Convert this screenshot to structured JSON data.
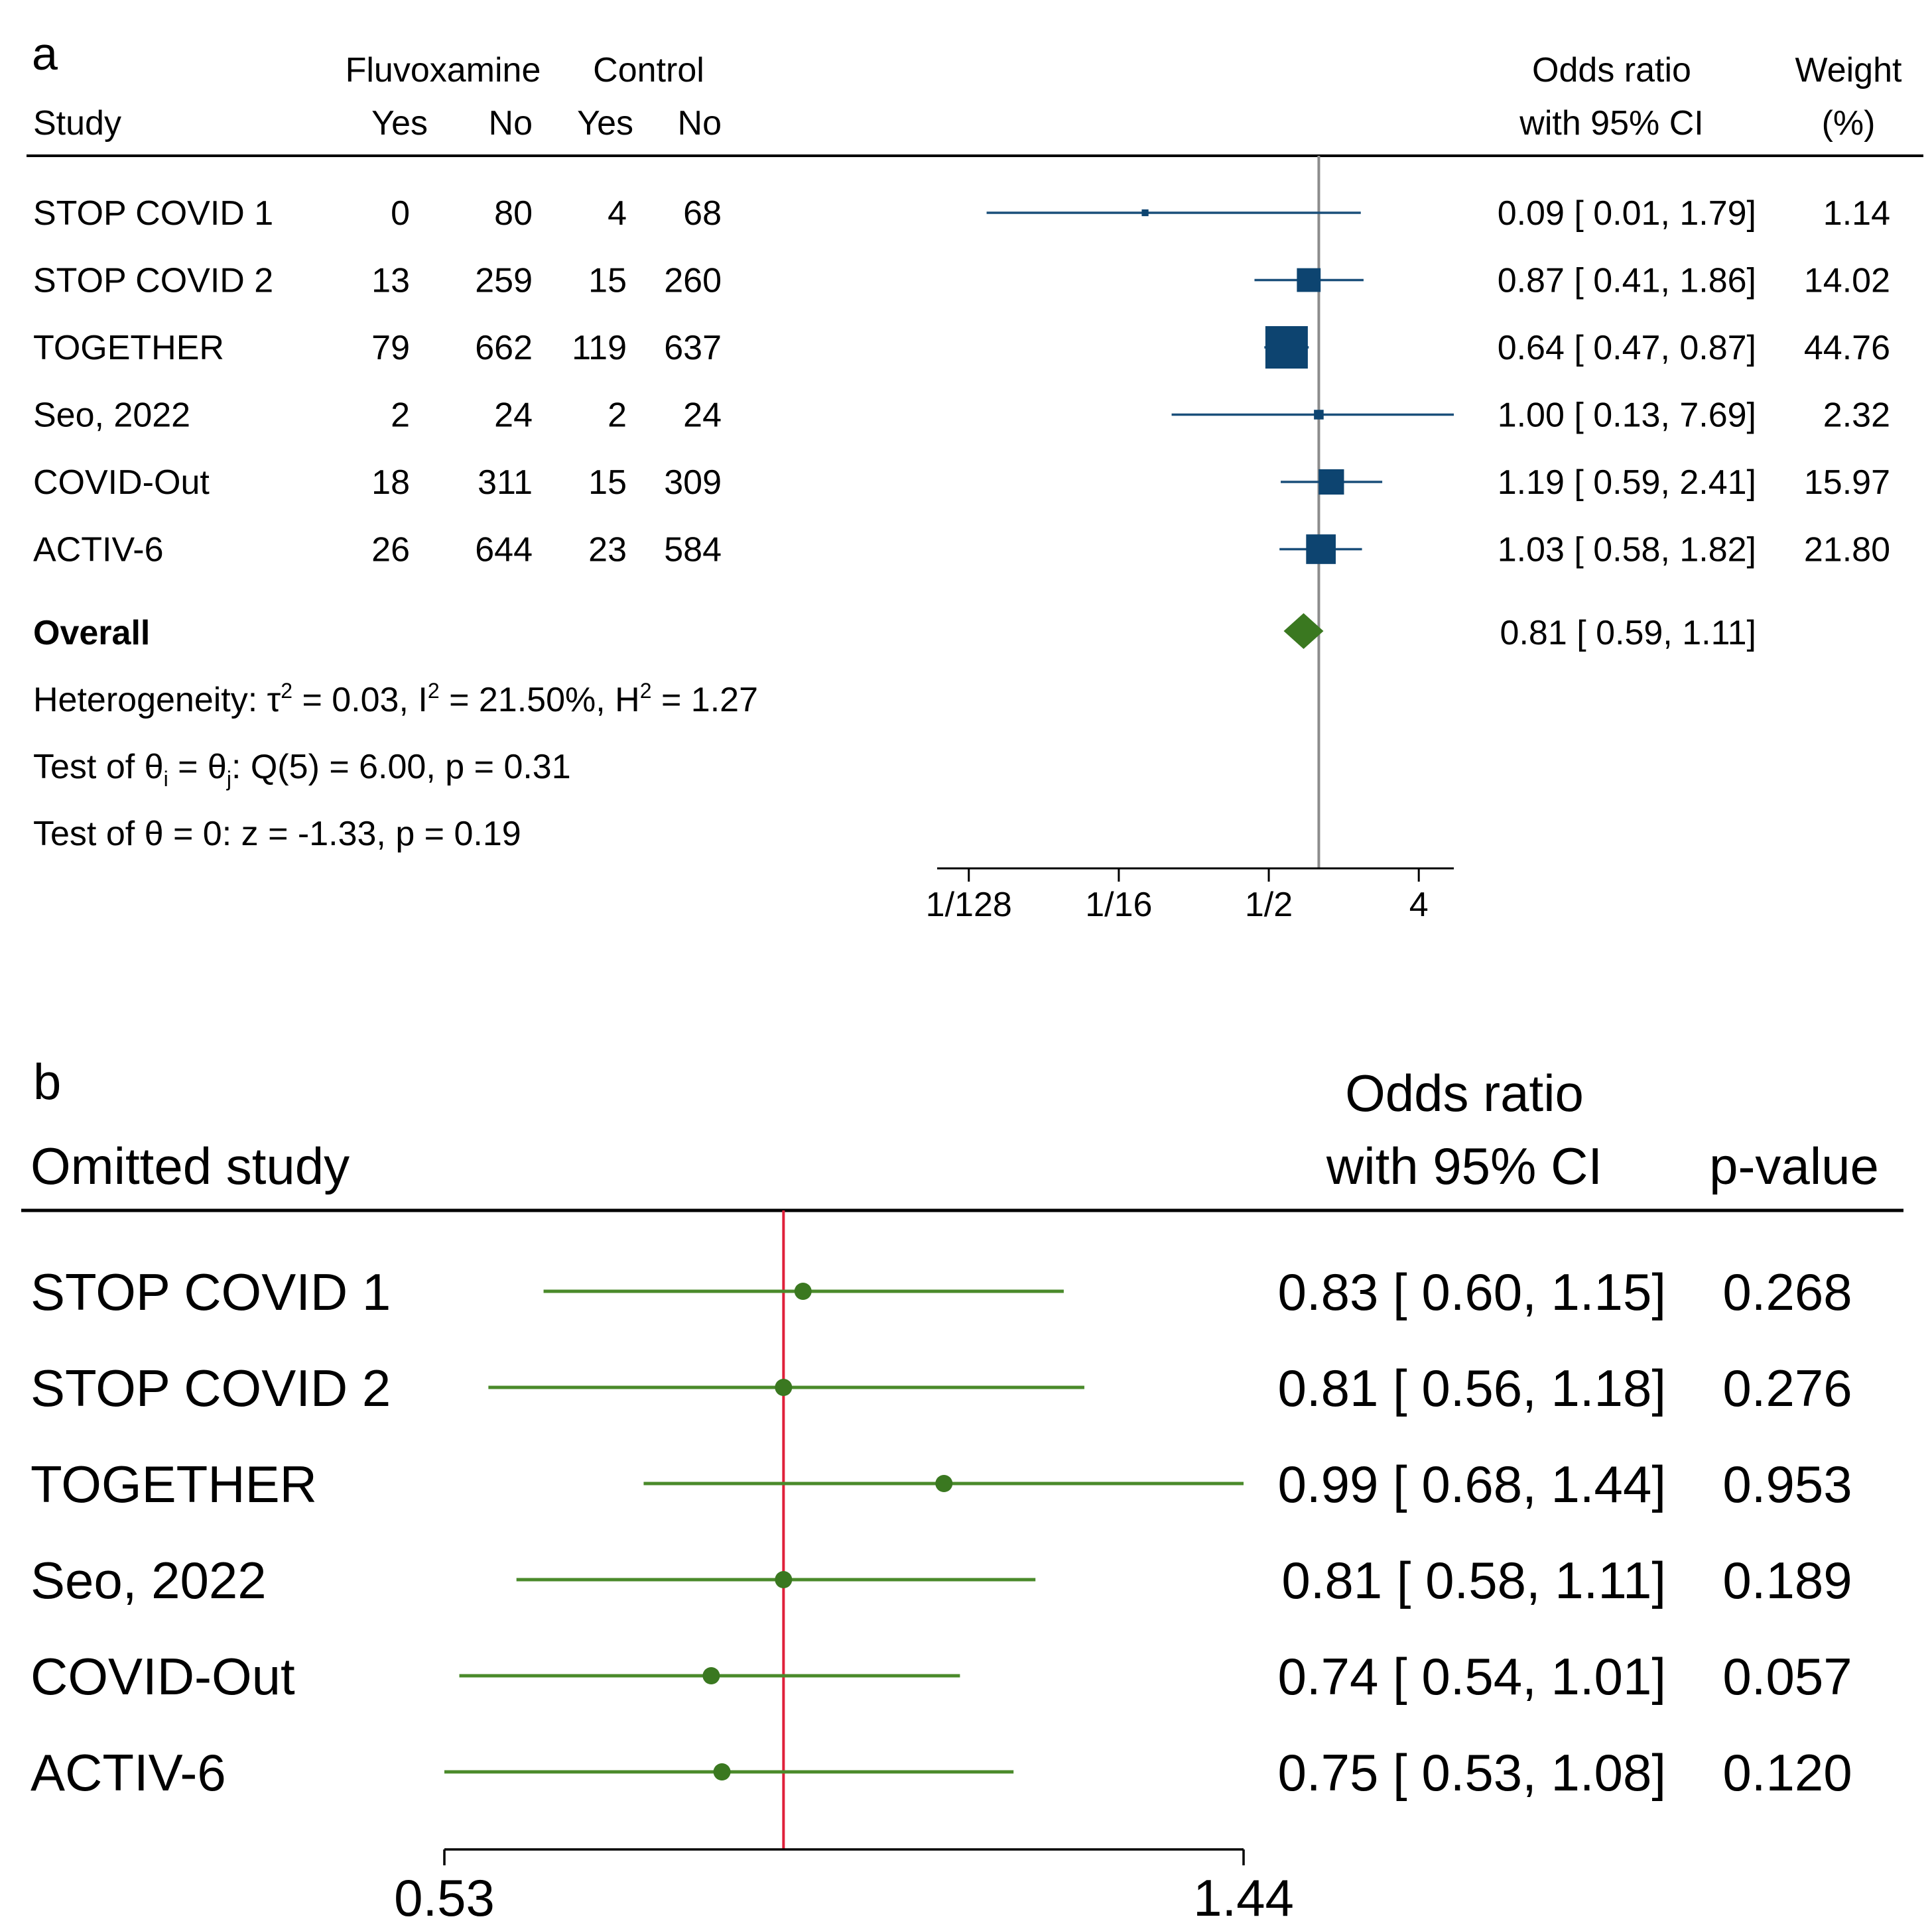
{
  "chart_data": [
    {
      "type": "forest",
      "panel_label": "a",
      "header": {
        "study": "Study",
        "group1": "Fluvoxamine",
        "group2": "Control",
        "yes": "Yes",
        "no": "No",
        "or_line1": "Odds ratio",
        "or_line2": "with 95% CI",
        "weight_line1": "Weight",
        "weight_line2": "(%)"
      },
      "scale": "log2",
      "xlim": [
        0.0049,
        6.5
      ],
      "reference_line": 1,
      "ticks": [
        {
          "value": 0.0078125,
          "label": "1/128"
        },
        {
          "value": 0.0625,
          "label": "1/16"
        },
        {
          "value": 0.5,
          "label": "1/2"
        },
        {
          "value": 4,
          "label": "4"
        }
      ],
      "studies": [
        {
          "name": "STOP COVID 1",
          "fluvoxamine_yes": "0",
          "fluvoxamine_no": "80",
          "control_yes": "4",
          "control_no": "68",
          "or": 0.09,
          "lo": 0.01,
          "hi": 1.79,
          "weight": 1.14,
          "or_text": "0.09 [ 0.01,  1.79]",
          "weight_text": "1.14"
        },
        {
          "name": "STOP COVID 2",
          "fluvoxamine_yes": "13",
          "fluvoxamine_no": "259",
          "control_yes": "15",
          "control_no": "260",
          "or": 0.87,
          "lo": 0.41,
          "hi": 1.86,
          "weight": 14.02,
          "or_text": "0.87 [ 0.41,  1.86]",
          "weight_text": "14.02"
        },
        {
          "name": "TOGETHER",
          "fluvoxamine_yes": "79",
          "fluvoxamine_no": "662",
          "control_yes": "119",
          "control_no": "637",
          "or": 0.64,
          "lo": 0.47,
          "hi": 0.87,
          "weight": 44.76,
          "or_text": "0.64 [ 0.47,  0.87]",
          "weight_text": "44.76"
        },
        {
          "name": "Seo, 2022",
          "fluvoxamine_yes": "2",
          "fluvoxamine_no": "24",
          "control_yes": "2",
          "control_no": "24",
          "or": 1.0,
          "lo": 0.13,
          "hi": 7.69,
          "weight": 2.32,
          "or_text": "1.00 [ 0.13,  7.69]",
          "weight_text": "2.32"
        },
        {
          "name": "COVID-Out",
          "fluvoxamine_yes": "18",
          "fluvoxamine_no": "311",
          "control_yes": "15",
          "control_no": "309",
          "or": 1.19,
          "lo": 0.59,
          "hi": 2.41,
          "weight": 15.97,
          "or_text": "1.19 [ 0.59,  2.41]",
          "weight_text": "15.97"
        },
        {
          "name": "ACTIV-6",
          "fluvoxamine_yes": "26",
          "fluvoxamine_no": "644",
          "control_yes": "23",
          "control_no": "584",
          "or": 1.03,
          "lo": 0.58,
          "hi": 1.82,
          "weight": 21.8,
          "or_text": "1.03 [ 0.58,  1.82]",
          "weight_text": "21.80"
        }
      ],
      "overall": {
        "label": "Overall",
        "or": 0.81,
        "lo": 0.59,
        "hi": 1.11,
        "or_text": "0.81 [ 0.59,  1.11]"
      },
      "stats": {
        "tau2": "0.03",
        "i2": "21.50%",
        "h2": "1.27",
        "q_df": "5",
        "q": "6.00",
        "q_p": "0.31",
        "z": "-1.33",
        "z_p": "0.19"
      },
      "colors": {
        "line": "#1a4f7a",
        "box": "#0d4470",
        "diamond": "#3a7820",
        "reference": "#8c8c8c"
      }
    },
    {
      "type": "forest",
      "panel_label": "b",
      "header": {
        "study": "Omitted study",
        "or_line1": "Odds ratio",
        "or_line2": "with 95% CI",
        "p": "p-value"
      },
      "scale": "log",
      "xlim": [
        0.53,
        1.44
      ],
      "reference_line": 0.81,
      "ticks": [
        {
          "value": 0.53,
          "label": "0.53"
        },
        {
          "value": 1.44,
          "label": "1.44"
        }
      ],
      "studies": [
        {
          "name": "STOP COVID 1",
          "or": 0.83,
          "lo": 0.6,
          "hi": 1.15,
          "p": "0.268",
          "or_text": "0.83 [ 0.60,  1.15]"
        },
        {
          "name": "STOP COVID 2",
          "or": 0.81,
          "lo": 0.56,
          "hi": 1.18,
          "p": "0.276",
          "or_text": "0.81 [ 0.56,  1.18]"
        },
        {
          "name": "TOGETHER",
          "or": 0.99,
          "lo": 0.68,
          "hi": 1.44,
          "p": "0.953",
          "or_text": "0.99 [ 0.68,  1.44]"
        },
        {
          "name": "Seo, 2022",
          "or": 0.81,
          "lo": 0.58,
          "hi": 1.11,
          "p": "0.189",
          "or_text": "0.81 [ 0.58,  1.11]"
        },
        {
          "name": "COVID-Out",
          "or": 0.74,
          "lo": 0.54,
          "hi": 1.01,
          "p": "0.057",
          "or_text": "0.74 [ 0.54,  1.01]"
        },
        {
          "name": "ACTIV-6",
          "or": 0.75,
          "lo": 0.53,
          "hi": 1.08,
          "p": "0.120",
          "or_text": "0.75 [ 0.53,  1.08]"
        }
      ],
      "colors": {
        "line": "#4a8a2a",
        "point": "#3a7820",
        "reference": "#e0203a"
      }
    }
  ]
}
